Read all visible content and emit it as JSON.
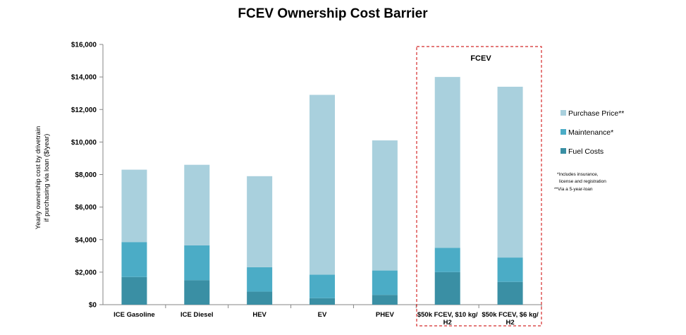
{
  "chart_data": {
    "type": "bar",
    "stacked": true,
    "title": "FCEV Ownership Cost Barrier",
    "ylabel_lines": [
      "Yearly ownership cost by drivetrain",
      "if purchasing via loan ($/year)"
    ],
    "ylim": [
      0,
      16000
    ],
    "yticks": [
      "$0",
      "$2,000",
      "$4,000",
      "$6,000",
      "$8,000",
      "$10,000",
      "$12,000",
      "$14,000",
      "$16,000"
    ],
    "categories": [
      [
        "ICE Gasoline"
      ],
      [
        "ICE Diesel"
      ],
      [
        "HEV"
      ],
      [
        "EV"
      ],
      [
        "PHEV"
      ],
      [
        "$50k FCEV, $10 kg/",
        "H2"
      ],
      [
        "$50k FCEV, $6 kg/",
        "H2"
      ]
    ],
    "series": [
      {
        "name": "Fuel Costs",
        "color": "#3a8fa4",
        "values": [
          1700,
          1500,
          800,
          400,
          600,
          2000,
          1400
        ]
      },
      {
        "name": "Maintenance*",
        "color": "#4bacc6",
        "values": [
          2150,
          2150,
          1500,
          1450,
          1500,
          1500,
          1500
        ]
      },
      {
        "name": "Purchase Price**",
        "color": "#a9d0dd",
        "values": [
          4450,
          4950,
          5600,
          11050,
          8000,
          10500,
          10500
        ]
      }
    ],
    "highlight": {
      "label": "FCEV",
      "categories": [
        5,
        6
      ],
      "style": "red dashed box"
    },
    "notes": [
      "*Includes insurance,",
      "license and registration",
      "**Via a 5-year-loan"
    ],
    "legend_position": "right",
    "grid": false
  }
}
